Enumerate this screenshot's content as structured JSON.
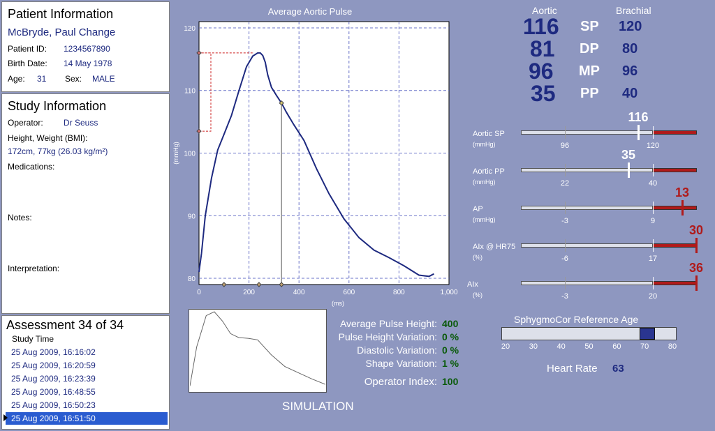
{
  "patient": {
    "title": "Patient Information",
    "name": "McBryde, Paul Change",
    "id_label": "Patient ID:",
    "id": "1234567890",
    "birth_label": "Birth Date:",
    "birth": "14 May 1978",
    "age_label": "Age:",
    "age": "31",
    "sex_label": "Sex:",
    "sex": "MALE"
  },
  "study": {
    "title": "Study Information",
    "operator_label": "Operator:",
    "operator": "Dr Seuss",
    "hw_label": "Height, Weight (BMI):",
    "hw": "172cm, 77kg (26.03 kg/m²)",
    "med_label": "Medications:",
    "notes_label": "Notes:",
    "interp_label": "Interpretation:"
  },
  "assessment": {
    "title": "Assessment 34 of 34",
    "col_label": "Study Time",
    "times": [
      "25 Aug 2009, 16:16:02",
      "25 Aug 2009, 16:20:59",
      "25 Aug 2009, 16:23:39",
      "25 Aug 2009, 16:48:55",
      "25 Aug 2009, 16:50:23",
      "25 Aug 2009, 16:51:50"
    ],
    "selected_index": 5
  },
  "bp": {
    "aortic_header": "Aortic",
    "brachial_header": "Brachial",
    "rows": [
      {
        "label": "SP",
        "aortic": "116",
        "brachial": "120"
      },
      {
        "label": "DP",
        "aortic": "81",
        "brachial": "80"
      },
      {
        "label": "MP",
        "aortic": "96",
        "brachial": "96"
      },
      {
        "label": "PP",
        "aortic": "35",
        "brachial": "40"
      }
    ]
  },
  "ref_bars": [
    {
      "label": "Aortic SP",
      "unit": "(mmHg)",
      "value": "116",
      "low": "96",
      "high": "120",
      "value_num": 116,
      "low_num": 96,
      "high_num": 120,
      "red": false
    },
    {
      "label": "Aortic PP",
      "unit": "(mmHg)",
      "value": "35",
      "low": "22",
      "high": "40",
      "value_num": 35,
      "low_num": 22,
      "high_num": 40,
      "red": false
    },
    {
      "label": "AP",
      "unit": "(mmHg)",
      "value": "13",
      "low": "-3",
      "high": "9",
      "value_num": 13,
      "low_num": -3,
      "high_num": 9,
      "red": true
    },
    {
      "label": "AIx @ HR75",
      "unit": "(%)",
      "value": "30",
      "low": "-6",
      "high": "17",
      "value_num": 30,
      "low_num": -6,
      "high_num": 17,
      "red": true
    },
    {
      "label": "AIx",
      "unit": "(%)",
      "value": "36",
      "low": "-3",
      "high": "20",
      "value_num": 36,
      "low_num": -3,
      "high_num": 20,
      "red": true
    }
  ],
  "ref_age": {
    "title": "SphygmoCor Reference Age",
    "ticks": [
      "20",
      "30",
      "40",
      "50",
      "60",
      "70",
      "80"
    ],
    "tick_values": [
      20,
      30,
      40,
      50,
      60,
      70,
      80
    ],
    "value": 71
  },
  "heart_rate": {
    "label": "Heart Rate",
    "value": "63"
  },
  "quality": [
    {
      "label": "Average Pulse Height:",
      "value": "400"
    },
    {
      "label": "Pulse Height Variation:",
      "value": "0 %"
    },
    {
      "label": "Diastolic Variation:",
      "value": "0 %"
    },
    {
      "label": "Shape Variation:",
      "value": "1 %"
    }
  ],
  "operator_index": {
    "label": "Operator Index:",
    "value": "100"
  },
  "simulation_label": "SIMULATION",
  "colors": {
    "background": "#8e97c0",
    "curve": "#1e2a80",
    "red": "#b01a1a",
    "green": "#0a5a0a"
  },
  "chart_data": {
    "type": "line",
    "title": "Average Aortic Pulse",
    "xlabel": "(ms)",
    "ylabel": "(mmHg)",
    "xlim": [
      0,
      1000
    ],
    "ylim": [
      79,
      121
    ],
    "x_ticks": [
      "0",
      "200",
      "400",
      "600",
      "800",
      "1,000"
    ],
    "x_tick_values": [
      0,
      200,
      400,
      600,
      800,
      1000
    ],
    "y_ticks": [
      "80",
      "90",
      "100",
      "110",
      "120"
    ],
    "y_tick_values": [
      80,
      90,
      100,
      110,
      120
    ],
    "grid": true,
    "series": [
      {
        "x": [
          0,
          10,
          25,
          50,
          75,
          100,
          130,
          160,
          190,
          215,
          235,
          245,
          255,
          265,
          275,
          290,
          310,
          330,
          350,
          380,
          420,
          470,
          520,
          580,
          640,
          700,
          760,
          820,
          880,
          920,
          940
        ],
        "y": [
          81,
          84,
          90,
          96,
          100.5,
          103,
          106,
          110,
          113.8,
          115.5,
          116,
          116,
          115.6,
          114.5,
          112.5,
          110.5,
          109.2,
          108,
          106.5,
          104.5,
          102,
          97.5,
          93.5,
          89.5,
          86.5,
          84.5,
          83.3,
          82,
          80.5,
          80.3,
          80.7
        ]
      }
    ],
    "markers": {
      "start_y": 103.5,
      "peak_y": 116,
      "inflection_x": 330,
      "inflection_y": 108,
      "x_axis_marks": [
        100,
        240,
        330
      ]
    },
    "min_curve": [
      [
        0,
        0.95
      ],
      [
        5,
        0.45
      ],
      [
        12,
        0.05
      ],
      [
        18,
        0.0
      ],
      [
        24,
        0.12
      ],
      [
        30,
        0.28
      ],
      [
        36,
        0.33
      ],
      [
        43,
        0.34
      ],
      [
        50,
        0.36
      ],
      [
        60,
        0.55
      ],
      [
        70,
        0.7
      ],
      [
        80,
        0.78
      ],
      [
        90,
        0.86
      ],
      [
        100,
        0.93
      ]
    ]
  }
}
